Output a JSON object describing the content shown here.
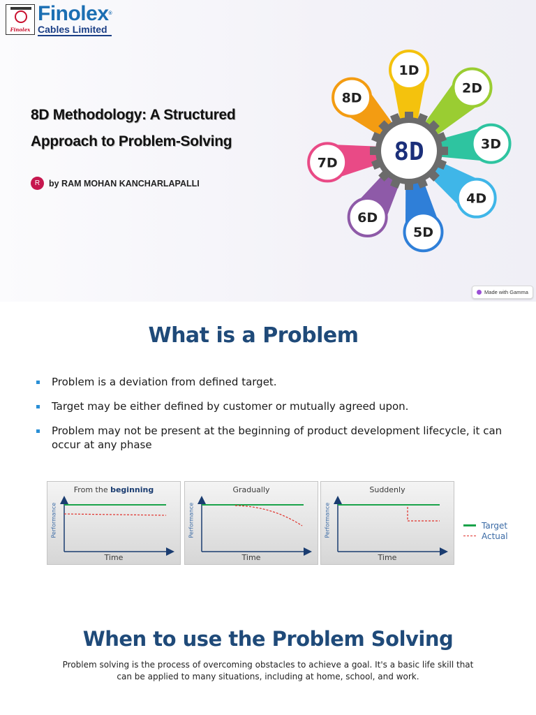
{
  "slide1": {
    "logo": {
      "name": "Finolex",
      "subtitle": "Cables Limited",
      "mark_text": "Finolex"
    },
    "title": "8D Methodology: A Structured Approach to Problem-Solving",
    "author": {
      "avatar_letter": "R",
      "text": "by RAM MOHAN KANCHARLAPALLI"
    },
    "wheel": {
      "center_label": "8D",
      "disciplines": [
        {
          "label": "1D",
          "color": "#f4c20d"
        },
        {
          "label": "2D",
          "color": "#9acd32"
        },
        {
          "label": "3D",
          "color": "#2ec4a0"
        },
        {
          "label": "4D",
          "color": "#3fb6e8"
        },
        {
          "label": "5D",
          "color": "#2f7fd8"
        },
        {
          "label": "6D",
          "color": "#8e5aa8"
        },
        {
          "label": "7D",
          "color": "#e94a86"
        },
        {
          "label": "8D",
          "color": "#f39c12"
        }
      ]
    },
    "badge": "Made with Gamma"
  },
  "slide2": {
    "heading": "What is a Problem",
    "bullets": [
      "Problem is a deviation from defined target.",
      "Target may be either defined by customer or mutually agreed upon.",
      "Problem may not be present at the beginning of product development lifecycle, it can occur at any phase"
    ],
    "graphs": [
      {
        "title_prefix": "From the ",
        "title_bold": "beginning",
        "ylabel": "Performance",
        "xlabel": "Time"
      },
      {
        "title_prefix": "Gradually",
        "title_bold": "",
        "ylabel": "Performance",
        "xlabel": "Time"
      },
      {
        "title_prefix": "Suddenly",
        "title_bold": "",
        "ylabel": "Performance",
        "xlabel": "Time"
      }
    ],
    "legend": [
      {
        "label": "Target",
        "color": "#1aa34a",
        "style": "solid"
      },
      {
        "label": "Actual",
        "color": "#e0302a",
        "style": "dashed"
      }
    ]
  },
  "slide3": {
    "heading": "When to use the Problem Solving",
    "paragraph": "Problem solving is the process of overcoming obstacles to achieve a goal. It's a basic life skill that can be applied to many situations, including at home, school, and work."
  }
}
